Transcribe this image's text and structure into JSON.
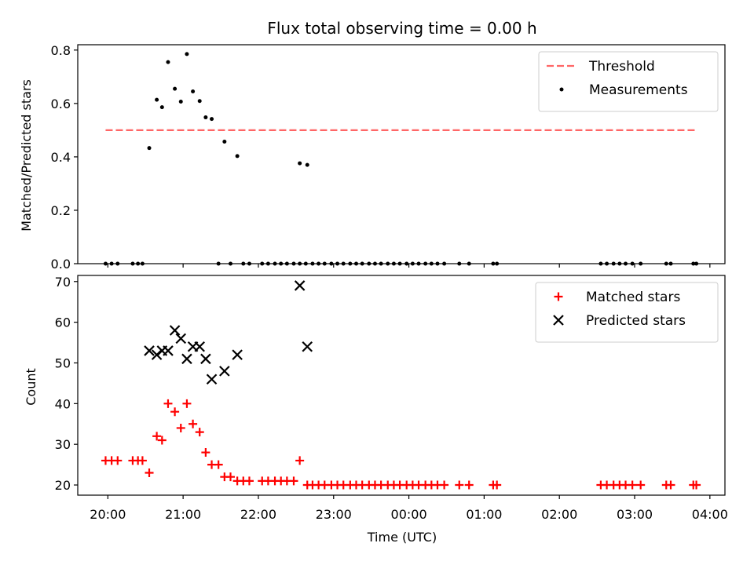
{
  "chart_data": {
    "title": "Flux total observing time = 0.00 h",
    "xlabel": "Time (UTC)",
    "x_tick_labels": [
      "20:00",
      "21:00",
      "22:00",
      "23:00",
      "00:00",
      "01:00",
      "02:00",
      "03:00",
      "04:00"
    ],
    "x_range_hours": [
      19.6,
      28.2
    ],
    "panels": [
      {
        "type": "scatter",
        "ylabel": "Matched/Predicted stars",
        "ylim": [
          0,
          0.82
        ],
        "yticks": [
          0.0,
          0.2,
          0.4,
          0.6,
          0.8
        ],
        "ytick_labels": [
          "0.0",
          "0.2",
          "0.4",
          "0.6",
          "0.8"
        ],
        "legend_position": "top-right",
        "threshold": {
          "name": "Threshold",
          "value": 0.5,
          "x_range": [
            19.97,
            27.8
          ],
          "color": "#ff6666"
        },
        "series": [
          {
            "name": "Measurements",
            "marker": "dot",
            "color": "#000000",
            "points": [
              [
                19.97,
                0
              ],
              [
                20.05,
                0
              ],
              [
                20.13,
                0
              ],
              [
                20.33,
                0
              ],
              [
                20.4,
                0
              ],
              [
                20.46,
                0
              ],
              [
                20.55,
                0.433
              ],
              [
                20.65,
                0.614
              ],
              [
                20.72,
                0.586
              ],
              [
                20.8,
                0.755
              ],
              [
                20.89,
                0.655
              ],
              [
                20.97,
                0.607
              ],
              [
                21.05,
                0.785
              ],
              [
                21.13,
                0.645
              ],
              [
                21.22,
                0.609
              ],
              [
                21.3,
                0.548
              ],
              [
                21.38,
                0.542
              ],
              [
                21.55,
                0.457
              ],
              [
                21.72,
                0.403
              ],
              [
                21.47,
                0
              ],
              [
                21.63,
                0
              ],
              [
                21.8,
                0
              ],
              [
                21.88,
                0
              ],
              [
                22.05,
                0
              ],
              [
                22.13,
                0
              ],
              [
                22.22,
                0
              ],
              [
                22.3,
                0
              ],
              [
                22.38,
                0
              ],
              [
                22.47,
                0
              ],
              [
                22.55,
                0
              ],
              [
                22.63,
                0
              ],
              [
                22.55,
                0.376
              ],
              [
                22.65,
                0.37
              ],
              [
                22.72,
                0
              ],
              [
                22.8,
                0
              ],
              [
                22.88,
                0
              ],
              [
                22.97,
                0
              ],
              [
                23.05,
                0
              ],
              [
                23.13,
                0
              ],
              [
                23.22,
                0
              ],
              [
                23.3,
                0
              ],
              [
                23.38,
                0
              ],
              [
                23.47,
                0
              ],
              [
                23.55,
                0
              ],
              [
                23.63,
                0
              ],
              [
                23.72,
                0
              ],
              [
                23.8,
                0
              ],
              [
                23.88,
                0
              ],
              [
                23.97,
                0
              ],
              [
                24.05,
                0
              ],
              [
                24.13,
                0
              ],
              [
                24.22,
                0
              ],
              [
                24.3,
                0
              ],
              [
                24.38,
                0
              ],
              [
                24.47,
                0
              ],
              [
                24.67,
                0
              ],
              [
                24.8,
                0
              ],
              [
                25.12,
                0
              ],
              [
                25.17,
                0
              ],
              [
                26.55,
                0
              ],
              [
                26.63,
                0
              ],
              [
                26.72,
                0
              ],
              [
                26.8,
                0
              ],
              [
                26.88,
                0
              ],
              [
                26.97,
                0
              ],
              [
                27.08,
                0
              ],
              [
                27.42,
                0
              ],
              [
                27.48,
                0
              ],
              [
                27.78,
                0
              ],
              [
                27.82,
                0
              ]
            ]
          }
        ]
      },
      {
        "type": "scatter",
        "ylabel": "Count",
        "ylim": [
          17.5,
          71.5
        ],
        "yticks": [
          20,
          30,
          40,
          50,
          60,
          70
        ],
        "ytick_labels": [
          "20",
          "30",
          "40",
          "50",
          "60",
          "70"
        ],
        "legend_position": "top-right",
        "series": [
          {
            "name": "Matched stars",
            "marker": "plus",
            "color": "#ff0000",
            "points": [
              [
                19.97,
                26
              ],
              [
                20.05,
                26
              ],
              [
                20.13,
                26
              ],
              [
                20.33,
                26
              ],
              [
                20.4,
                26
              ],
              [
                20.46,
                26
              ],
              [
                20.55,
                23
              ],
              [
                20.65,
                32
              ],
              [
                20.72,
                31
              ],
              [
                20.8,
                40
              ],
              [
                20.89,
                38
              ],
              [
                20.97,
                34
              ],
              [
                21.05,
                40
              ],
              [
                21.13,
                35
              ],
              [
                21.22,
                33
              ],
              [
                21.3,
                28
              ],
              [
                21.38,
                25
              ],
              [
                21.47,
                25
              ],
              [
                21.55,
                22
              ],
              [
                21.63,
                22
              ],
              [
                21.72,
                21
              ],
              [
                21.8,
                21
              ],
              [
                21.88,
                21
              ],
              [
                22.05,
                21
              ],
              [
                22.13,
                21
              ],
              [
                22.22,
                21
              ],
              [
                22.3,
                21
              ],
              [
                22.38,
                21
              ],
              [
                22.47,
                21
              ],
              [
                22.55,
                26
              ],
              [
                22.65,
                20
              ],
              [
                22.72,
                20
              ],
              [
                22.8,
                20
              ],
              [
                22.88,
                20
              ],
              [
                22.97,
                20
              ],
              [
                23.05,
                20
              ],
              [
                23.13,
                20
              ],
              [
                23.22,
                20
              ],
              [
                23.3,
                20
              ],
              [
                23.38,
                20
              ],
              [
                23.47,
                20
              ],
              [
                23.55,
                20
              ],
              [
                23.63,
                20
              ],
              [
                23.72,
                20
              ],
              [
                23.8,
                20
              ],
              [
                23.88,
                20
              ],
              [
                23.97,
                20
              ],
              [
                24.05,
                20
              ],
              [
                24.13,
                20
              ],
              [
                24.22,
                20
              ],
              [
                24.3,
                20
              ],
              [
                24.38,
                20
              ],
              [
                24.47,
                20
              ],
              [
                24.67,
                20
              ],
              [
                24.8,
                20
              ],
              [
                25.12,
                20
              ],
              [
                25.17,
                20
              ],
              [
                26.55,
                20
              ],
              [
                26.63,
                20
              ],
              [
                26.72,
                20
              ],
              [
                26.8,
                20
              ],
              [
                26.88,
                20
              ],
              [
                26.97,
                20
              ],
              [
                27.08,
                20
              ],
              [
                27.42,
                20
              ],
              [
                27.48,
                20
              ],
              [
                27.78,
                20
              ],
              [
                27.82,
                20
              ]
            ]
          },
          {
            "name": "Predicted stars",
            "marker": "x",
            "color": "#000000",
            "points": [
              [
                20.55,
                53
              ],
              [
                20.65,
                52
              ],
              [
                20.72,
                53
              ],
              [
                20.8,
                53
              ],
              [
                20.89,
                58
              ],
              [
                20.97,
                56
              ],
              [
                21.05,
                51
              ],
              [
                21.13,
                54
              ],
              [
                21.22,
                54
              ],
              [
                21.3,
                51
              ],
              [
                21.38,
                46
              ],
              [
                21.55,
                48
              ],
              [
                21.72,
                52
              ],
              [
                22.55,
                69
              ],
              [
                22.65,
                54
              ]
            ]
          }
        ]
      }
    ]
  }
}
